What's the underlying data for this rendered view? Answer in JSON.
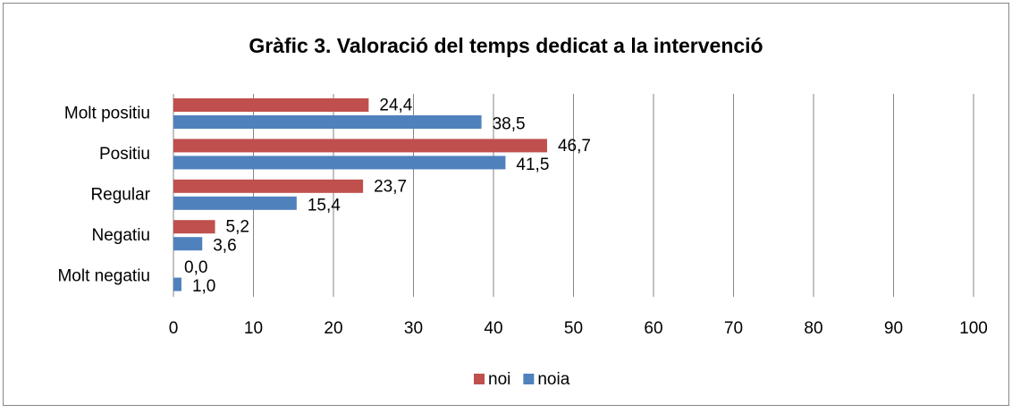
{
  "chart_data": {
    "type": "hbar",
    "title": "Gràfic 3. Valoració del temps dedicat a la intervenció",
    "categories": [
      "Molt positiu",
      "Positiu",
      "Regular",
      "Negatiu",
      "Molt negatiu"
    ],
    "series": [
      {
        "name": "noi",
        "color": "#c0504d",
        "values": [
          24.4,
          46.7,
          23.7,
          5.2,
          0.0
        ],
        "value_labels": [
          "24,4",
          "46,7",
          "23,7",
          "5,2",
          "0,0"
        ]
      },
      {
        "name": "noia",
        "color": "#4f81bd",
        "values": [
          38.5,
          41.5,
          15.4,
          3.6,
          1.0
        ],
        "value_labels": [
          "38,5",
          "41,5",
          "15,4",
          "3,6",
          "1,0"
        ]
      }
    ],
    "xlim": [
      0,
      100
    ],
    "xticks": [
      0,
      10,
      20,
      30,
      40,
      50,
      60,
      70,
      80,
      90,
      100
    ],
    "grid": true,
    "legend": "bottom"
  }
}
